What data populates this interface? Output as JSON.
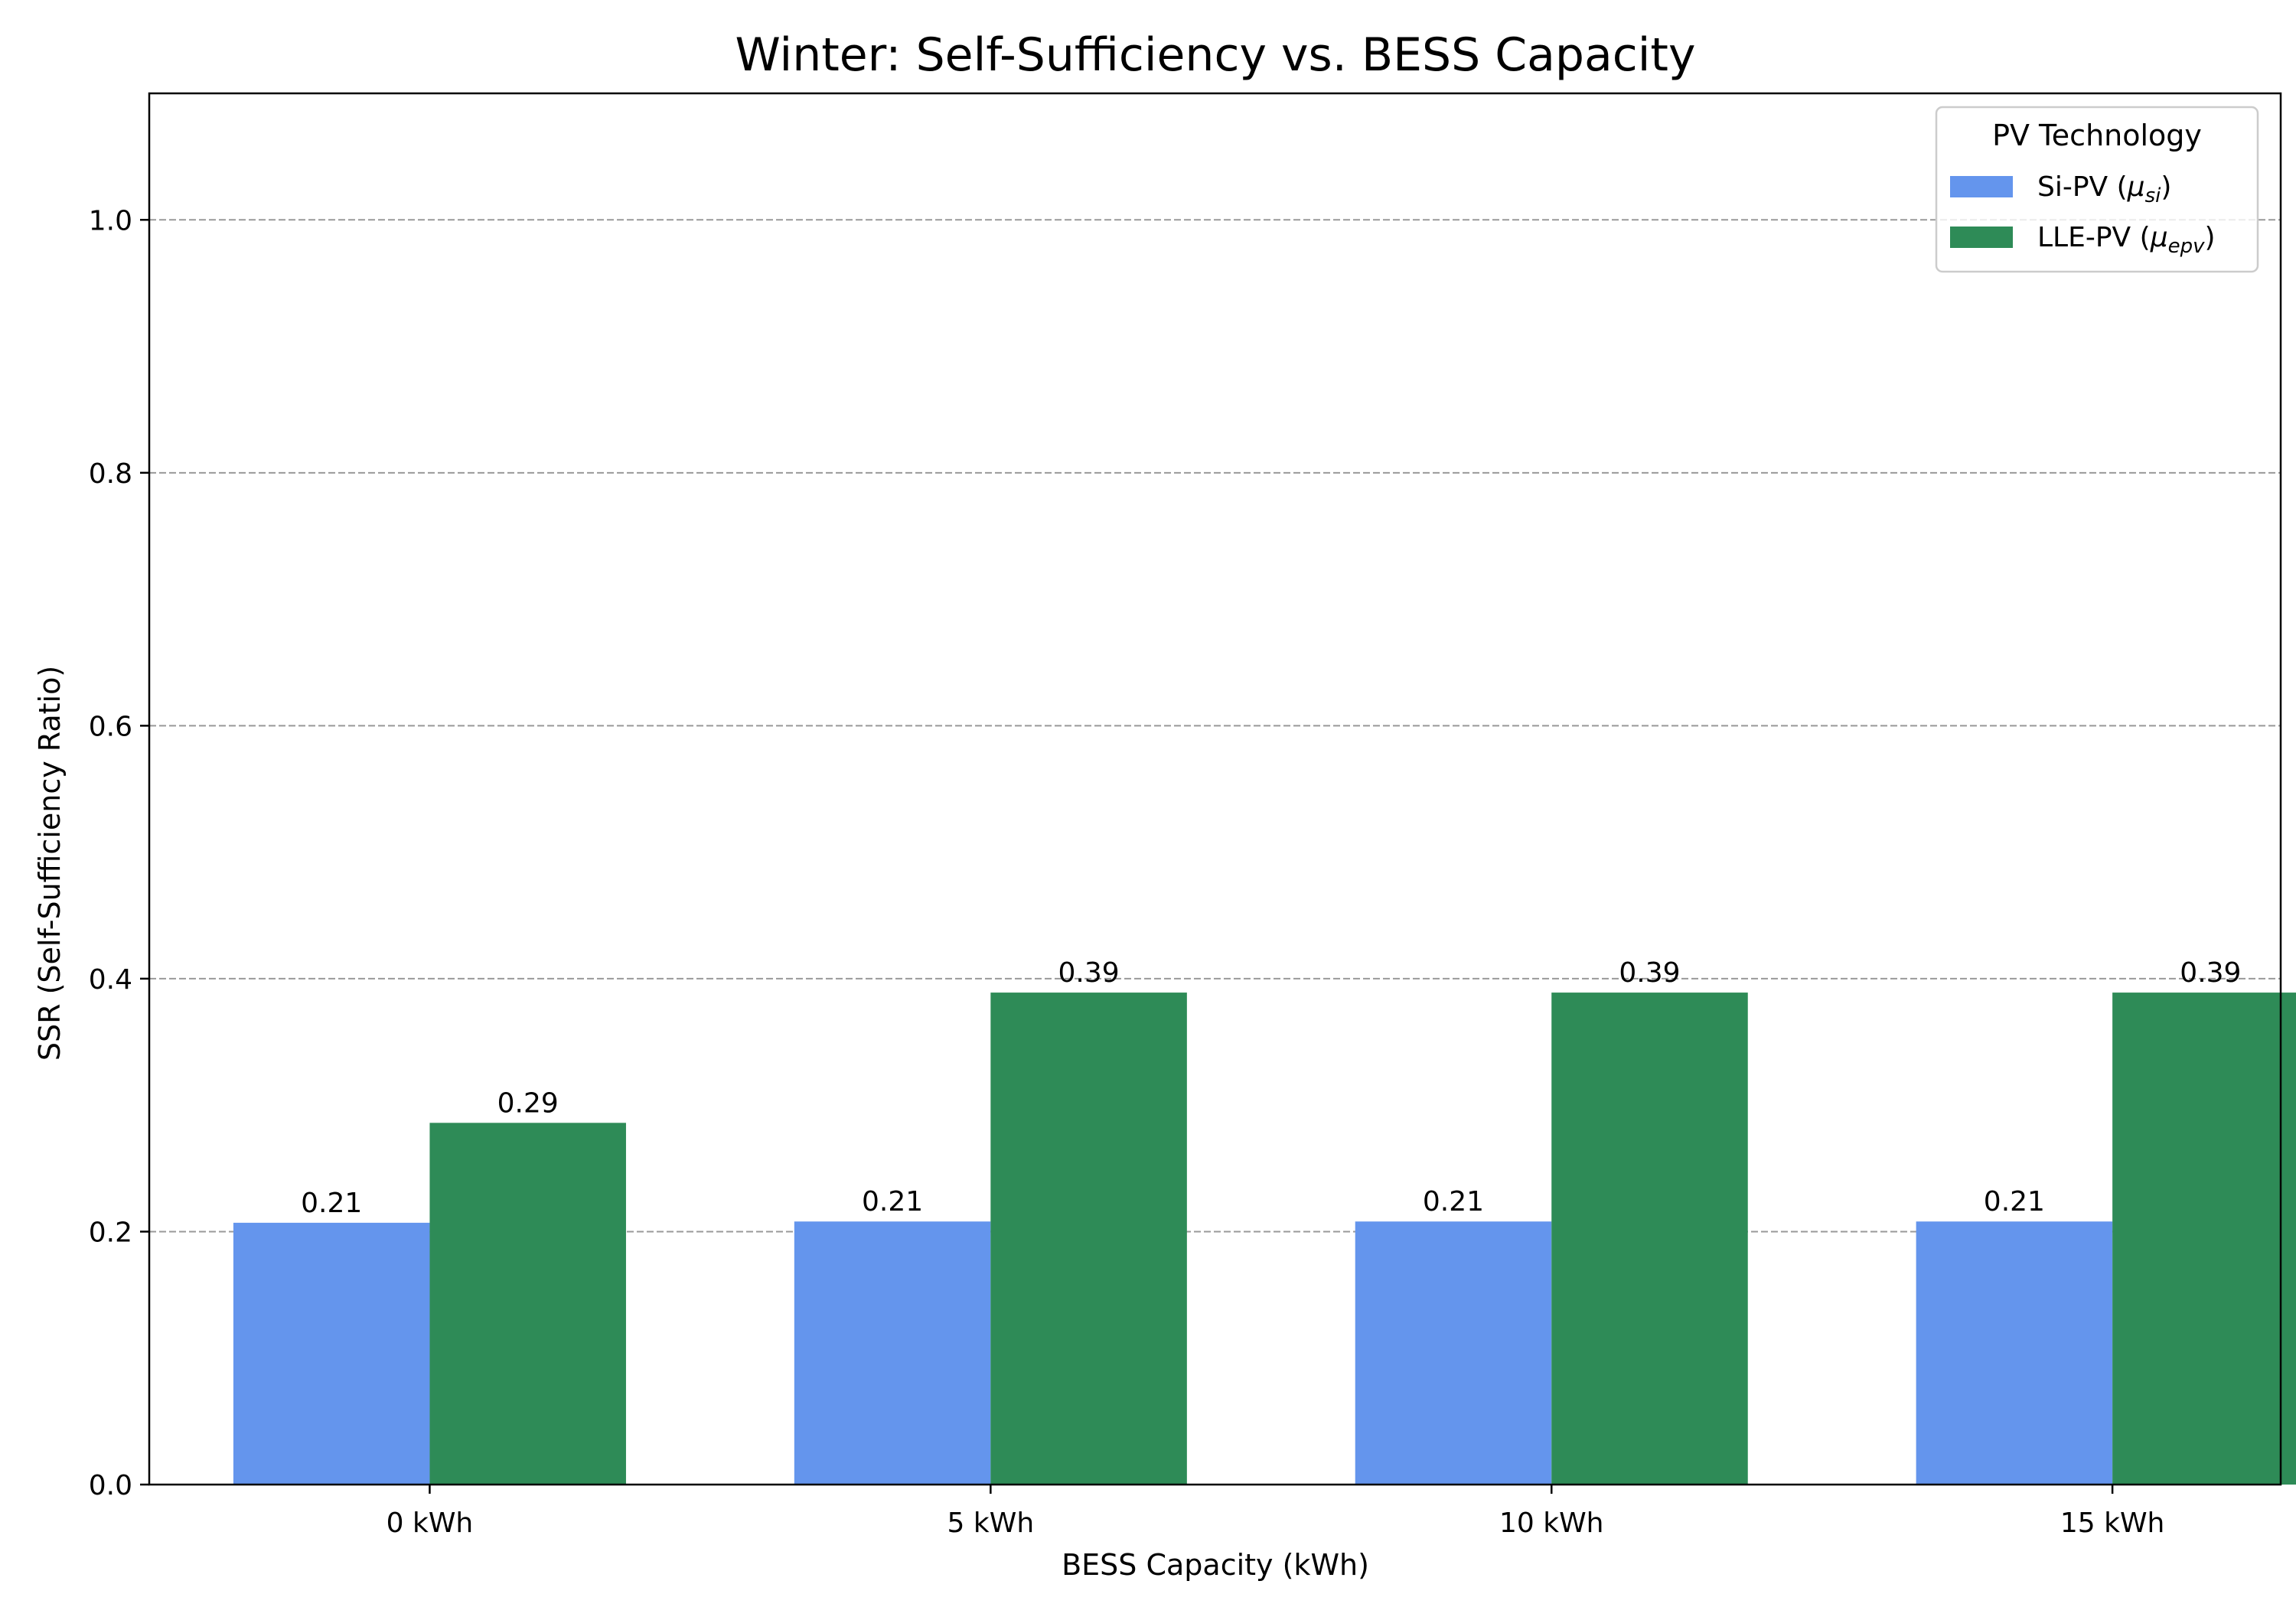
{
  "chart_data": {
    "type": "bar",
    "title": "Winter: Self-Sufficiency vs. BESS Capacity",
    "xlabel": "BESS Capacity (kWh)",
    "ylabel": "SSR (Self-Sufficiency Ratio)",
    "categories": [
      "0 kWh",
      "5 kWh",
      "10 kWh",
      "15 kWh"
    ],
    "series": [
      {
        "name": "Si-PV (μsi)",
        "name_base": "Si-PV (",
        "name_symbol": "μ",
        "name_sub": "si",
        "name_end": ")",
        "color": "#6495ED",
        "values": [
          0.207,
          0.208,
          0.208,
          0.208
        ],
        "labels": [
          "0.21",
          "0.21",
          "0.21",
          "0.21"
        ]
      },
      {
        "name": "LLE-PV (μepv)",
        "name_base": "LLE-PV (",
        "name_symbol": "μ",
        "name_sub": "epv",
        "name_end": ")",
        "color": "#2E8B57",
        "values": [
          0.286,
          0.389,
          0.389,
          0.389
        ],
        "labels": [
          "0.29",
          "0.39",
          "0.39",
          "0.39"
        ]
      }
    ],
    "ylim": [
      0,
      1.1
    ],
    "yticks": [
      0.0,
      0.2,
      0.4,
      0.6,
      0.8,
      1.0
    ],
    "ytick_labels": [
      "0.0",
      "0.2",
      "0.4",
      "0.6",
      "0.8",
      "1.0"
    ],
    "grid": "y-dashed",
    "legend": {
      "title": "PV Technology",
      "placement": "top-right"
    }
  }
}
